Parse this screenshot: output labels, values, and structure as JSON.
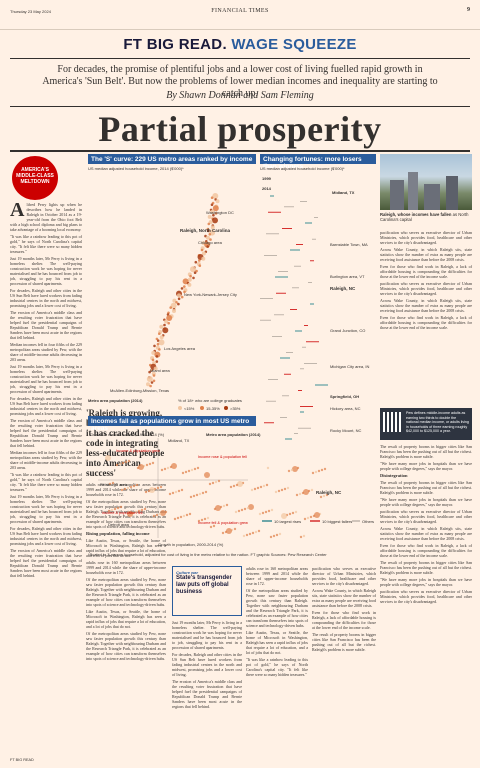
{
  "topbar": {
    "date": "Thursday 23 May 2024",
    "masthead": "FINANCIAL TIMES",
    "page_number": "9"
  },
  "section": {
    "brand": "FT BIG READ.",
    "kicker": "WAGE SQUEEZE"
  },
  "standfirst": "For decades, the promise of plentiful jobs and a lower cost of living fuelled rapid growth in America's 'Sun Belt'. But now the problems of lower median incomes and inequality are starting to catch up.",
  "byline": "By Shawn Donnan and Sam Fleming",
  "headline": "Partial prosperity",
  "badge": {
    "text": "AMERICA'S MIDDLE-CLASS MELTDOWN"
  },
  "col1": {
    "p1_rest": "lifred Perry lights up when he describes how he landed in Raleigh in October 2014 as a 19-year-old from the Ohio foot Belt with a high school diploma and big plans to take advantage of a booming local economy.",
    "p2": "\"It was like a rainbow leading to this pot of gold,\" he says of North Carolina's capital city. \"It felt like there were so many hidden treasures.\"",
    "p3": "Just 19 months later, Mr Perry is living in a homeless shelter. The well-paying construction work he was hoping for never materialised and he has bounced from job to job, struggling to pay his rent in a procession of shared apartments.",
    "p4": "For decades, Raleigh and other cities in the US Sun Belt have lured workers from fading industrial centres in the north and midwest, promising jobs and a lower cost of living.",
    "p5": "The erosion of America's middle class and the resulting voter frustration that have helped fuel the presidential campaigns of Republican Donald Trump and Bernie Sanders have been most acute in the regions that fell behind.",
    "p6": "Median incomes fell in four fifths of the 229 metropolitan areas studied by Pew, with the share of middle-income adults decreasing in 203 areas."
  },
  "col2": {
    "pull_quote": "'Raleigh is growing, but it doesn't mean it has cracked the code in integrating less-educated people into American success'",
    "p1": "adults rose in 160 metropolitan areas between 1999 and 2014 while the share of upper-income households rose in 172.",
    "p2": "Of the metropolitan areas studied by Pew, none saw faster population growth this century than Raleigh. Together with neighbouring Durham and the Research Triangle Park, it is celebrated as an example of how cities can transform themselves into spots of science and technology-driven hubs.",
    "subhead": "Rising population, falling income",
    "p3": "Like Austin, Texas, or Seattle, the home of Microsoft in Washington, Raleigh has seen a rapid influx of jobs that require a lot of education, and a lot of jobs that do not."
  },
  "charts": {
    "curve": {
      "title": "The 'S' curve: 229 US metro areas ranked by income",
      "subtitle": "US median adjusted household income, 2014 ($'000)*",
      "labels": [
        "Washington DC",
        "Raleigh, North Carolina",
        "Chicago area",
        "New York-Newark-Jersey City",
        "Los Angeles area",
        "Miami area",
        "McAllen-Edinburg-Mission, Texas"
      ],
      "axis_label": "Metro area population (2014)",
      "legend": "% of 18+ who are college graduates",
      "legend_items": [
        "<15%",
        "15-35%",
        ">35%"
      ]
    },
    "arrows": {
      "title": "Changing fortunes: more losers than winners",
      "subtitle": "US median adjusted household income ($'000)*",
      "years": [
        "1999",
        "2014"
      ],
      "labels": [
        "Midland, TX",
        "Barnstable Town, MA",
        "Burlington area, VT",
        "Raleigh, NC",
        "Grand Junction, CO",
        "Michigan City area, IN",
        "Springfield, OH",
        "Hickory area, NC",
        "Rocky Mount, NC"
      ],
      "legend": [
        "10 largest rises",
        "10 biggest fallers",
        "Others"
      ]
    },
    "scatter": {
      "title": "Incomes fall as populations grow in most US metro areas",
      "ylabel": "Growth in median income, 1999-2014 (%)",
      "xlabel": "Growth in population, 2000-2014 (%)",
      "annotations": [
        "Midland, TX",
        "Metro area population (2014)",
        "Pittsburgh area",
        "Detroit area",
        "Raleigh, NC"
      ],
      "quadrants": [
        "Income & population grew",
        "Income rose & population fell",
        "Income fell & population grew",
        "Income & population fell"
      ]
    },
    "footnote": "*Scaled to 3-person household, adjusted for cost of living in the metro relative to the nation. FT graphic Sources: Pew Research Center"
  },
  "caption": {
    "bold": "Raleigh, whose incomes have fallen",
    "rest": "as North Carolina's capital"
  },
  "promo": {
    "label": "Culture war",
    "headline": "State's transgender law puts off global business"
  },
  "qr": {
    "text": "Pew defines middle-income adults as earning two thirds to double the national median income, or adults living in households of three earning roughly $42,000 to $125,000 a year."
  },
  "right_col": {
    "p1": "pacification who serves as executive director of Urban Ministries, which provides food, healthcare and other services to the city's disadvantaged.",
    "p2": "Across Wake County, in which Raleigh sits, state statistics show the number of extra as many people are receiving food assistance than before the 2008 crisis.",
    "p3": "Even for those who find work in Raleigh, a lack of affordable housing is compounding the difficulties for those at the lower end of the income scale.",
    "subhead": "Disintegration",
    "p4": "The result of property booms in bigger cities like San Francisco has been the pushing out of all but the richest. Raleigh's problem is more subtle.",
    "p5": "\"We have many more jobs in hospitals than we have people with college degrees,\" says the mayor."
  },
  "footer": {
    "text": "FT BIG READ"
  }
}
